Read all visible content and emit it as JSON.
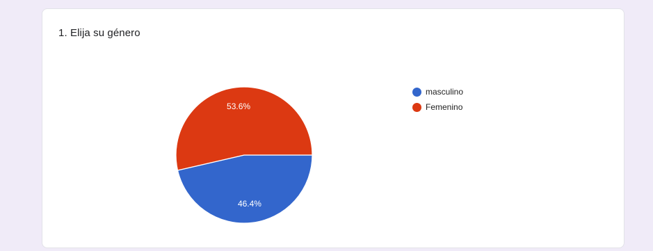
{
  "question": {
    "title": "1. Elija su género"
  },
  "chart_data": {
    "type": "pie",
    "categories": [
      "masculino",
      "Femenino"
    ],
    "values": [
      46.4,
      53.6
    ],
    "labels": [
      "46.4%",
      "53.6%"
    ],
    "colors": [
      "#3366cc",
      "#dc3912"
    ],
    "legend_placement": "right"
  }
}
